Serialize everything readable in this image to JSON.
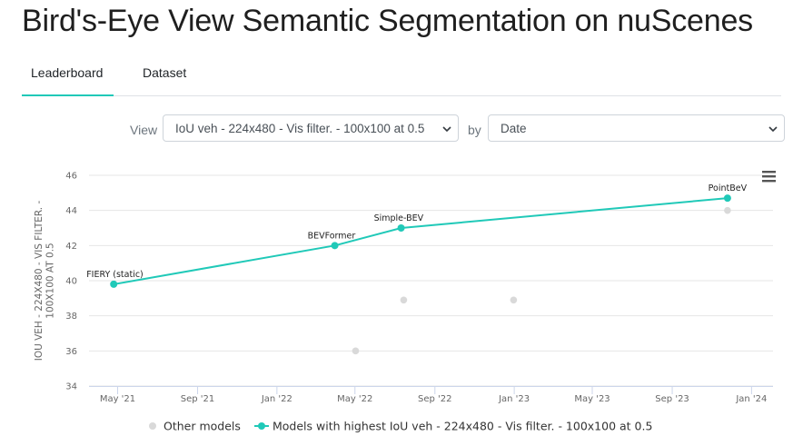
{
  "title": "Bird's-Eye View Semantic Segmentation on nuScenes",
  "tabs": [
    {
      "label": "Leaderboard",
      "active": true
    },
    {
      "label": "Dataset",
      "active": false
    }
  ],
  "controls": {
    "view_label": "View",
    "view_value": "IoU veh - 224x480 - Vis filter. - 100x100 at 0.5",
    "by_label": "by",
    "by_value": "Date"
  },
  "accent_color": "#20c9b8",
  "other_color": "#d9d9d9",
  "menu_icon": "hamburger-menu-icon",
  "chart_data": {
    "type": "scatter",
    "ylabel": "IOU VEH - 224X480 - VIS FILTER. - 100X100 AT 0.5",
    "ylim": [
      34,
      46
    ],
    "yticks": [
      "34",
      "36",
      "38",
      "40",
      "42",
      "44",
      "46"
    ],
    "xlim": [
      "2021-03-18",
      "2024-02-03"
    ],
    "xticks": [
      {
        "date": "2021-05-01",
        "label": "May '21"
      },
      {
        "date": "2021-09-01",
        "label": "Sep '21"
      },
      {
        "date": "2022-01-01",
        "label": "Jan '22"
      },
      {
        "date": "2022-05-01",
        "label": "May '22"
      },
      {
        "date": "2022-09-01",
        "label": "Sep '22"
      },
      {
        "date": "2023-01-01",
        "label": "Jan '23"
      },
      {
        "date": "2023-05-01",
        "label": "May '23"
      },
      {
        "date": "2023-09-01",
        "label": "Sep '23"
      },
      {
        "date": "2024-01-01",
        "label": "Jan '24"
      }
    ],
    "series": [
      {
        "name": "Other models",
        "points": [
          {
            "x": "2022-05-02",
            "y": 36.0
          },
          {
            "x": "2022-07-15",
            "y": 38.9
          },
          {
            "x": "2022-12-31",
            "y": 38.9
          },
          {
            "x": "2023-11-25",
            "y": 44.0
          }
        ]
      },
      {
        "name": "Models with highest IoU veh - 224x480 - Vis filter. - 100x100 at 0.5",
        "points": [
          {
            "x": "2021-04-25",
            "y": 39.8,
            "label": "FIERY (static)"
          },
          {
            "x": "2022-03-31",
            "y": 42.0,
            "label": "BEVFormer"
          },
          {
            "x": "2022-07-11",
            "y": 43.0,
            "label": "Simple-BEV"
          },
          {
            "x": "2023-11-25",
            "y": 44.7,
            "label": "PointBeV"
          }
        ]
      }
    ],
    "legend_position": "bottom-center"
  }
}
